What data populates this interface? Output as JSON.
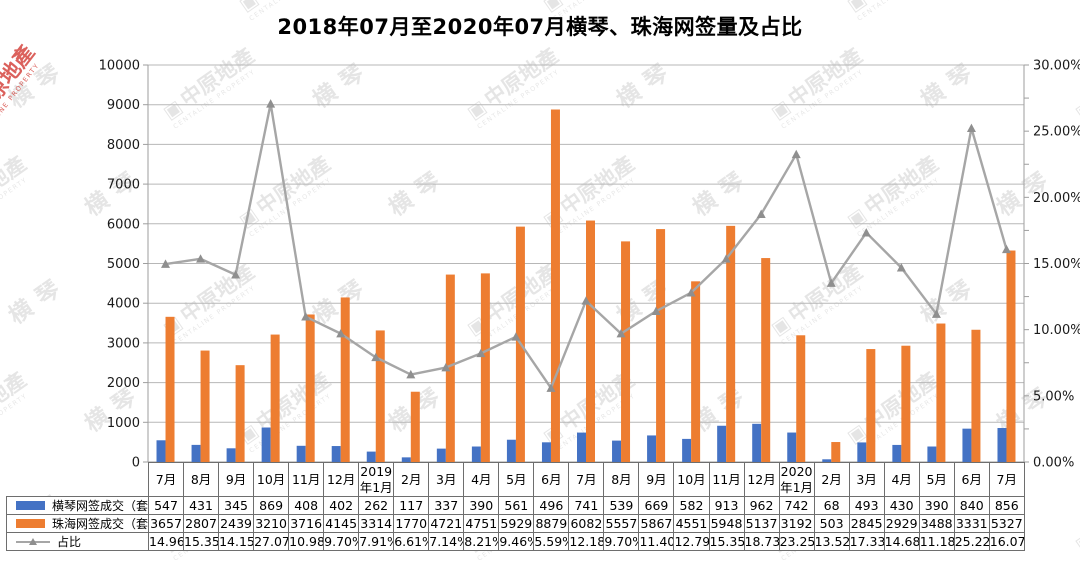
{
  "title": "2018年07月至2020年07月横琴、珠海网签量及占比",
  "watermark": {
    "brand": "中原地產",
    "brand_sub": "CENTALINE PROPERTY",
    "region": "横琴",
    "logo_glyph": "▣",
    "gray_color": "rgba(0,0,0,0.10)",
    "red_color": "rgba(211,62,56,0.82)"
  },
  "chart_data": {
    "type": "bar+line",
    "categories": [
      "7月",
      "8月",
      "9月",
      "10月",
      "11月",
      "12月",
      "2019年1月",
      "2月",
      "3月",
      "4月",
      "5月",
      "6月",
      "7月",
      "8月",
      "9月",
      "10月",
      "11月",
      "12月",
      "2020年1月",
      "2月",
      "3月",
      "4月",
      "5月",
      "6月",
      "7月"
    ],
    "series": [
      {
        "name": "横琴网签成交（套）",
        "type": "bar",
        "color": "#4472C4",
        "axis": "left",
        "values": [
          547,
          431,
          345,
          869,
          408,
          402,
          262,
          117,
          337,
          390,
          561,
          496,
          741,
          539,
          669,
          582,
          913,
          962,
          742,
          68,
          493,
          430,
          390,
          840,
          856
        ]
      },
      {
        "name": "珠海网签成交（套）",
        "type": "bar",
        "color": "#ED7D31",
        "axis": "left",
        "values": [
          3657,
          2807,
          2439,
          3210,
          3716,
          4145,
          3314,
          1770,
          4721,
          4751,
          5929,
          8879,
          6082,
          5557,
          5867,
          4551,
          5948,
          5137,
          3192,
          503,
          2845,
          2929,
          3488,
          3331,
          5327
        ]
      },
      {
        "name": "占比",
        "type": "line",
        "color": "#A6A6A6",
        "axis": "right",
        "values": [
          14.96,
          15.35,
          14.15,
          27.07,
          10.98,
          9.7,
          7.91,
          6.61,
          7.14,
          8.21,
          9.46,
          5.59,
          12.18,
          9.7,
          11.4,
          12.79,
          15.35,
          18.73,
          23.25,
          13.52,
          17.33,
          14.68,
          11.18,
          25.22,
          16.07
        ],
        "display": [
          "14.96",
          "15.35",
          "14.15",
          "27.07",
          "10.98",
          "9.70%",
          "7.91%",
          "6.61%",
          "7.14%",
          "8.21%",
          "9.46%",
          "5.59%",
          "12.18",
          "9.70%",
          "11.40",
          "12.79",
          "15.35",
          "18.73",
          "23.25",
          "13.52",
          "17.33",
          "14.68",
          "11.18",
          "25.22",
          "16.07"
        ]
      }
    ],
    "left_axis": {
      "min": 0,
      "max": 10000,
      "step": 1000,
      "ticks": [
        "0",
        "1000",
        "2000",
        "3000",
        "4000",
        "5000",
        "6000",
        "7000",
        "8000",
        "9000",
        "10000"
      ]
    },
    "right_axis": {
      "min": 0,
      "max": 30,
      "step": 5,
      "minor_step": 2.5,
      "ticks": [
        "0.00%",
        "5.00%",
        "10.00%",
        "15.00%",
        "20.00%",
        "25.00%",
        "30.00%"
      ]
    },
    "grid": true,
    "legend_position": "table-left",
    "colors": {
      "gridline": "#b7b7b7",
      "axis_frame": "#9e9e9e",
      "axis_text": "#1a1a1a",
      "table_border": "#6e6e6e"
    }
  }
}
